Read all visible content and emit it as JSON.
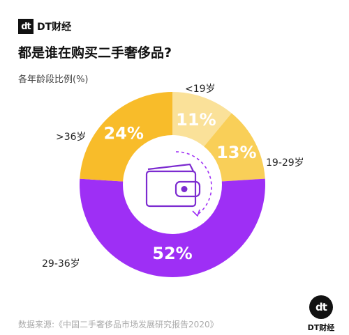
{
  "header": {
    "brand_mark": "dt",
    "brand_text": "DT财经"
  },
  "title": "都是谁在购买二手奢侈品?",
  "subtitle": "各年龄段比例(%)",
  "source": "数据来源:《中国二手奢侈品市场发展研究报告2020》",
  "footer_logo": {
    "mark": "dt",
    "text": "DT财经"
  },
  "colors": {
    "under19": "#fae199",
    "age19_29": "#f9cf58",
    "age29_36": "#9e2ff5",
    "over36": "#f8bc2a",
    "text_light": "#ffffff"
  },
  "chart_data": {
    "type": "pie",
    "title": "都是谁在购买二手奢侈品?",
    "subtitle": "各年龄段比例(%)",
    "categories": [
      "<19岁",
      "19-29岁",
      "29-36岁",
      ">36岁"
    ],
    "values": [
      11,
      13,
      52,
      24
    ],
    "value_labels": [
      "11%",
      "13%",
      "52%",
      "24%"
    ],
    "donut": true,
    "start": "12 o'clock, clockwise"
  }
}
